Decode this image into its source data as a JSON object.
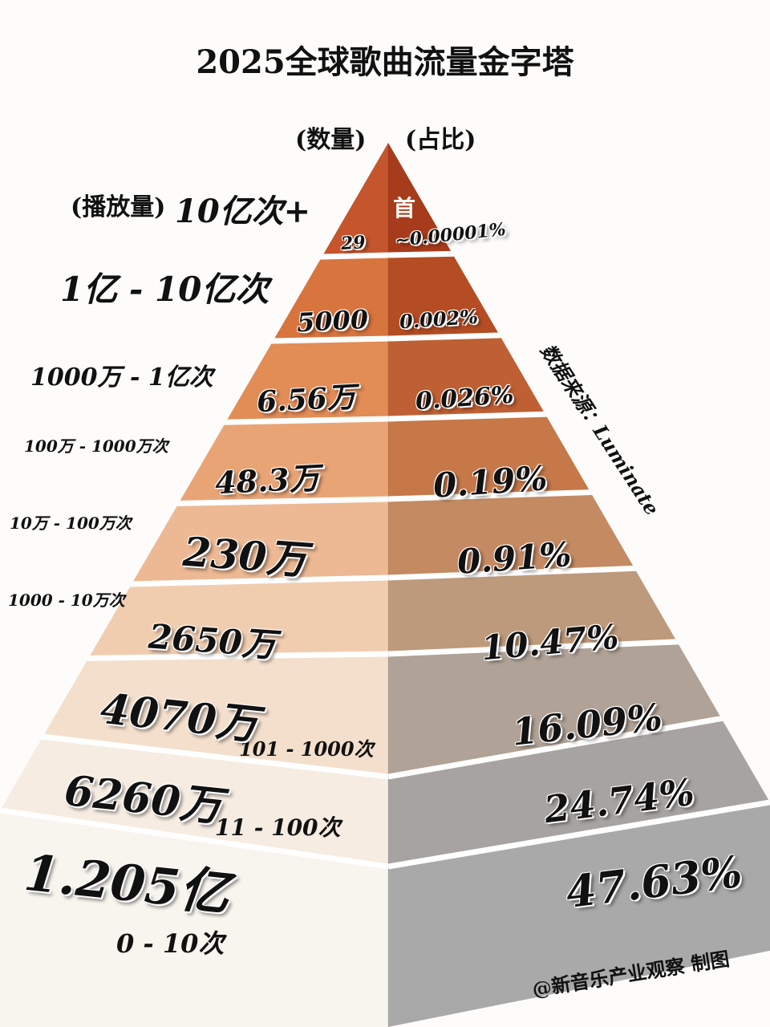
{
  "title": "2025全球歌曲流量金字塔",
  "headers": {
    "count": "(数量)",
    "share": "(占比)",
    "plays": "(播放量)"
  },
  "unit_label": "首",
  "colors": {
    "separator": "#ffffff",
    "text": "#111111"
  },
  "levels": [
    {
      "range": "10亿次+",
      "count": "29",
      "share": "~0.00001%",
      "left_color": "#c4552c",
      "right_color": "#a63c1b"
    },
    {
      "range": "1亿 - 10亿次",
      "count": "5000",
      "share": "0.002%",
      "left_color": "#d8743e",
      "right_color": "#b44d24"
    },
    {
      "range": "1000万 - 1亿次",
      "count": "6.56万",
      "share": "0.026%",
      "left_color": "#e28c56",
      "right_color": "#bf6034"
    },
    {
      "range": "100万 - 1000万次",
      "count": "48.3万",
      "share": "0.19%",
      "left_color": "#e9a476",
      "right_color": "#c67848"
    },
    {
      "range": "10万 - 100万次",
      "count": "230万",
      "share": "0.91%",
      "left_color": "#edb994",
      "right_color": "#c48a62"
    },
    {
      "range": "1000 - 10万次",
      "count": "2650万",
      "share": "10.47%",
      "left_color": "#f1cdb0",
      "right_color": "#bd9a7c"
    },
    {
      "range": "101 - 1000次",
      "count": "4070万",
      "share": "16.09%",
      "left_color": "#f4dfcc",
      "right_color": "#b0a296"
    },
    {
      "range": "11 - 100次",
      "count": "6260万",
      "share": "24.74%",
      "left_color": "#f6ece2",
      "right_color": "#a6a3a0"
    },
    {
      "range": "0 - 10次",
      "count": "1.205亿",
      "share": "47.63%",
      "left_color": "#f8f4ee",
      "right_color": "#a9a9a9"
    }
  ],
  "source": "数据来源：Luminate",
  "credit": "@新音乐产业观察  制图"
}
